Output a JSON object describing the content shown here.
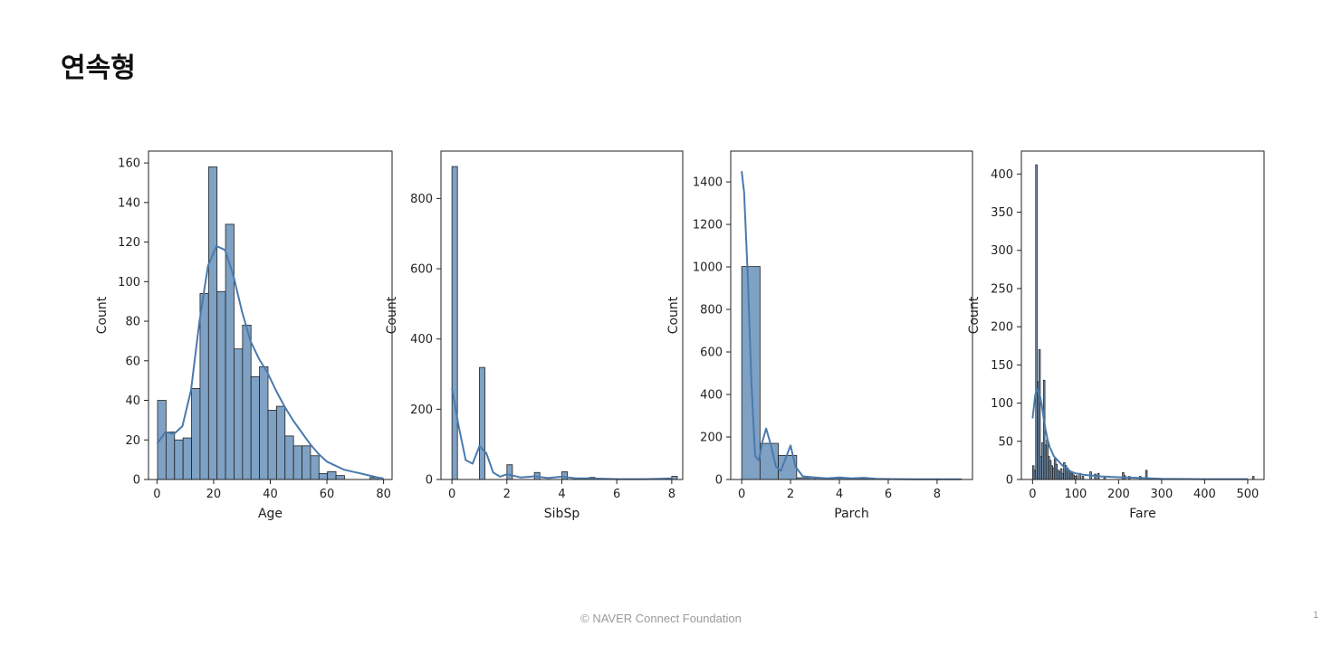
{
  "slide": {
    "title": "연속형",
    "footer": "©  NAVER Connect Foundation",
    "page_number": "1"
  },
  "colors": {
    "bar_fill": "#7ea1c4",
    "bar_edge": "#222222",
    "kde_line": "#4a7aad",
    "axes": "#222222",
    "text": "#222222"
  },
  "chart_data": [
    {
      "type": "bar",
      "subtype": "histogram-with-kde",
      "xlabel": "Age",
      "ylabel": "Count",
      "xlim": [
        -3,
        83
      ],
      "ylim": [
        0,
        166
      ],
      "xticks": [
        0,
        20,
        40,
        60,
        80
      ],
      "yticks": [
        0,
        20,
        40,
        60,
        80,
        100,
        120,
        140,
        160
      ],
      "bar_width": 3.0,
      "bars": [
        {
          "x": 0.2,
          "value": 40
        },
        {
          "x": 3.2,
          "value": 24
        },
        {
          "x": 6.2,
          "value": 20
        },
        {
          "x": 9.2,
          "value": 21
        },
        {
          "x": 12.2,
          "value": 46
        },
        {
          "x": 15.2,
          "value": 94
        },
        {
          "x": 18.2,
          "value": 158
        },
        {
          "x": 21.2,
          "value": 95
        },
        {
          "x": 24.2,
          "value": 129
        },
        {
          "x": 27.2,
          "value": 66
        },
        {
          "x": 30.2,
          "value": 78
        },
        {
          "x": 33.2,
          "value": 52
        },
        {
          "x": 36.2,
          "value": 57
        },
        {
          "x": 39.2,
          "value": 35
        },
        {
          "x": 42.2,
          "value": 37
        },
        {
          "x": 45.2,
          "value": 22
        },
        {
          "x": 48.2,
          "value": 17
        },
        {
          "x": 51.2,
          "value": 17
        },
        {
          "x": 54.2,
          "value": 12
        },
        {
          "x": 57.2,
          "value": 3
        },
        {
          "x": 60.2,
          "value": 4
        },
        {
          "x": 63.2,
          "value": 2
        },
        {
          "x": 66.2,
          "value": 0
        },
        {
          "x": 69.2,
          "value": 0
        },
        {
          "x": 72.2,
          "value": 0
        },
        {
          "x": 75.2,
          "value": 1
        }
      ],
      "kde": {
        "x": [
          0,
          3,
          6,
          9,
          12,
          15,
          18,
          21,
          24,
          27,
          30,
          33,
          36,
          39,
          42,
          45,
          48,
          51,
          54,
          57,
          60,
          63,
          66,
          69,
          72,
          75,
          78,
          80
        ],
        "y": [
          18,
          24,
          23,
          27,
          45,
          80,
          108,
          118,
          116,
          103,
          85,
          70,
          61,
          54,
          45,
          37,
          30,
          24,
          18,
          13,
          9,
          7,
          5,
          4,
          3,
          2,
          1,
          0.5
        ]
      }
    },
    {
      "type": "bar",
      "subtype": "histogram-with-kde",
      "xlabel": "SibSp",
      "ylabel": "Count",
      "xlim": [
        -0.4,
        8.4
      ],
      "ylim": [
        0,
        935
      ],
      "xticks": [
        0,
        2,
        4,
        6,
        8
      ],
      "yticks": [
        0,
        200,
        400,
        600,
        800
      ],
      "bar_width": 0.2,
      "bars": [
        {
          "x": 0,
          "value": 891
        },
        {
          "x": 1,
          "value": 319
        },
        {
          "x": 2,
          "value": 42
        },
        {
          "x": 3,
          "value": 20
        },
        {
          "x": 4,
          "value": 22
        },
        {
          "x": 5,
          "value": 6
        },
        {
          "x": 8,
          "value": 9
        }
      ],
      "kde": {
        "x": [
          0,
          0.25,
          0.5,
          0.75,
          1,
          1.25,
          1.5,
          1.75,
          2,
          2.5,
          3,
          3.5,
          4,
          4.5,
          5,
          6,
          7,
          7.5,
          8
        ],
        "y": [
          260,
          150,
          55,
          45,
          95,
          75,
          20,
          8,
          15,
          6,
          9,
          4,
          8,
          3,
          3,
          1,
          1,
          2,
          3
        ]
      }
    },
    {
      "type": "bar",
      "subtype": "histogram-with-kde",
      "xlabel": "Parch",
      "ylabel": "Count",
      "xlim": [
        -0.45,
        9.45
      ],
      "ylim": [
        0,
        1545
      ],
      "xticks": [
        0,
        2,
        4,
        6,
        8
      ],
      "yticks": [
        0,
        200,
        400,
        600,
        800,
        1000,
        1200,
        1400
      ],
      "bar_width": 0.75,
      "bars": [
        {
          "x": 0,
          "value": 1002
        },
        {
          "x": 0.75,
          "value": 170
        },
        {
          "x": 1.5,
          "value": 113
        },
        {
          "x": 2.25,
          "value": 8
        },
        {
          "x": 3,
          "value": 6
        },
        {
          "x": 3.75,
          "value": 6
        },
        {
          "x": 4.5,
          "value": 2
        },
        {
          "x": 5.25,
          "value": 4
        },
        {
          "x": 6,
          "value": 0
        },
        {
          "x": 8.25,
          "value": 2
        }
      ],
      "kde": {
        "x": [
          0,
          0.1,
          0.25,
          0.4,
          0.55,
          0.7,
          0.85,
          1,
          1.2,
          1.4,
          1.6,
          1.8,
          2,
          2.2,
          2.5,
          3,
          3.5,
          4,
          4.5,
          5,
          5.5,
          6,
          7,
          8,
          9
        ],
        "y": [
          1450,
          1350,
          950,
          450,
          110,
          90,
          180,
          240,
          160,
          60,
          40,
          100,
          160,
          60,
          15,
          10,
          5,
          10,
          5,
          8,
          3,
          2,
          1,
          1,
          1
        ]
      }
    },
    {
      "type": "bar",
      "subtype": "histogram-with-kde",
      "xlabel": "Fare",
      "ylabel": "Count",
      "xlim": [
        -26,
        538
      ],
      "ylim": [
        0,
        430
      ],
      "xticks": [
        0,
        100,
        200,
        300,
        400,
        500
      ],
      "yticks": [
        0,
        50,
        100,
        150,
        200,
        250,
        300,
        350,
        400
      ],
      "bar_width": 3.6,
      "bars": [
        {
          "x": 0,
          "value": 18
        },
        {
          "x": 3.6,
          "value": 12
        },
        {
          "x": 7.2,
          "value": 412
        },
        {
          "x": 10.8,
          "value": 128
        },
        {
          "x": 14.4,
          "value": 170
        },
        {
          "x": 18,
          "value": 30
        },
        {
          "x": 21.6,
          "value": 48
        },
        {
          "x": 25.2,
          "value": 130
        },
        {
          "x": 28.8,
          "value": 45
        },
        {
          "x": 32.4,
          "value": 52
        },
        {
          "x": 36,
          "value": 30
        },
        {
          "x": 39.6,
          "value": 25
        },
        {
          "x": 43.2,
          "value": 18
        },
        {
          "x": 46.8,
          "value": 15
        },
        {
          "x": 50.4,
          "value": 27
        },
        {
          "x": 54,
          "value": 20
        },
        {
          "x": 57.6,
          "value": 12
        },
        {
          "x": 61.2,
          "value": 10
        },
        {
          "x": 64.8,
          "value": 14
        },
        {
          "x": 68.4,
          "value": 8
        },
        {
          "x": 72,
          "value": 22
        },
        {
          "x": 75.6,
          "value": 18
        },
        {
          "x": 79.2,
          "value": 15
        },
        {
          "x": 82.8,
          "value": 12
        },
        {
          "x": 86.4,
          "value": 10
        },
        {
          "x": 90,
          "value": 8
        },
        {
          "x": 93.6,
          "value": 6
        },
        {
          "x": 97.2,
          "value": 4
        },
        {
          "x": 100.8,
          "value": 5
        },
        {
          "x": 108,
          "value": 8
        },
        {
          "x": 115.2,
          "value": 4
        },
        {
          "x": 133.2,
          "value": 10
        },
        {
          "x": 144,
          "value": 7
        },
        {
          "x": 151.2,
          "value": 8
        },
        {
          "x": 165.6,
          "value": 3
        },
        {
          "x": 208.8,
          "value": 9
        },
        {
          "x": 212.4,
          "value": 5
        },
        {
          "x": 223.2,
          "value": 4
        },
        {
          "x": 248.4,
          "value": 4
        },
        {
          "x": 262.8,
          "value": 12
        },
        {
          "x": 511.2,
          "value": 4
        }
      ],
      "kde": {
        "x": [
          0,
          3,
          6,
          10,
          14,
          18,
          22,
          26,
          30,
          35,
          40,
          50,
          60,
          70,
          80,
          90,
          100,
          120,
          140,
          160,
          200,
          250,
          300,
          400,
          500
        ],
        "y": [
          80,
          95,
          110,
          118,
          116,
          108,
          95,
          80,
          66,
          52,
          42,
          30,
          24,
          18,
          14,
          10,
          8,
          6,
          5,
          4,
          3,
          2,
          1,
          0.5,
          0.5
        ]
      }
    }
  ]
}
